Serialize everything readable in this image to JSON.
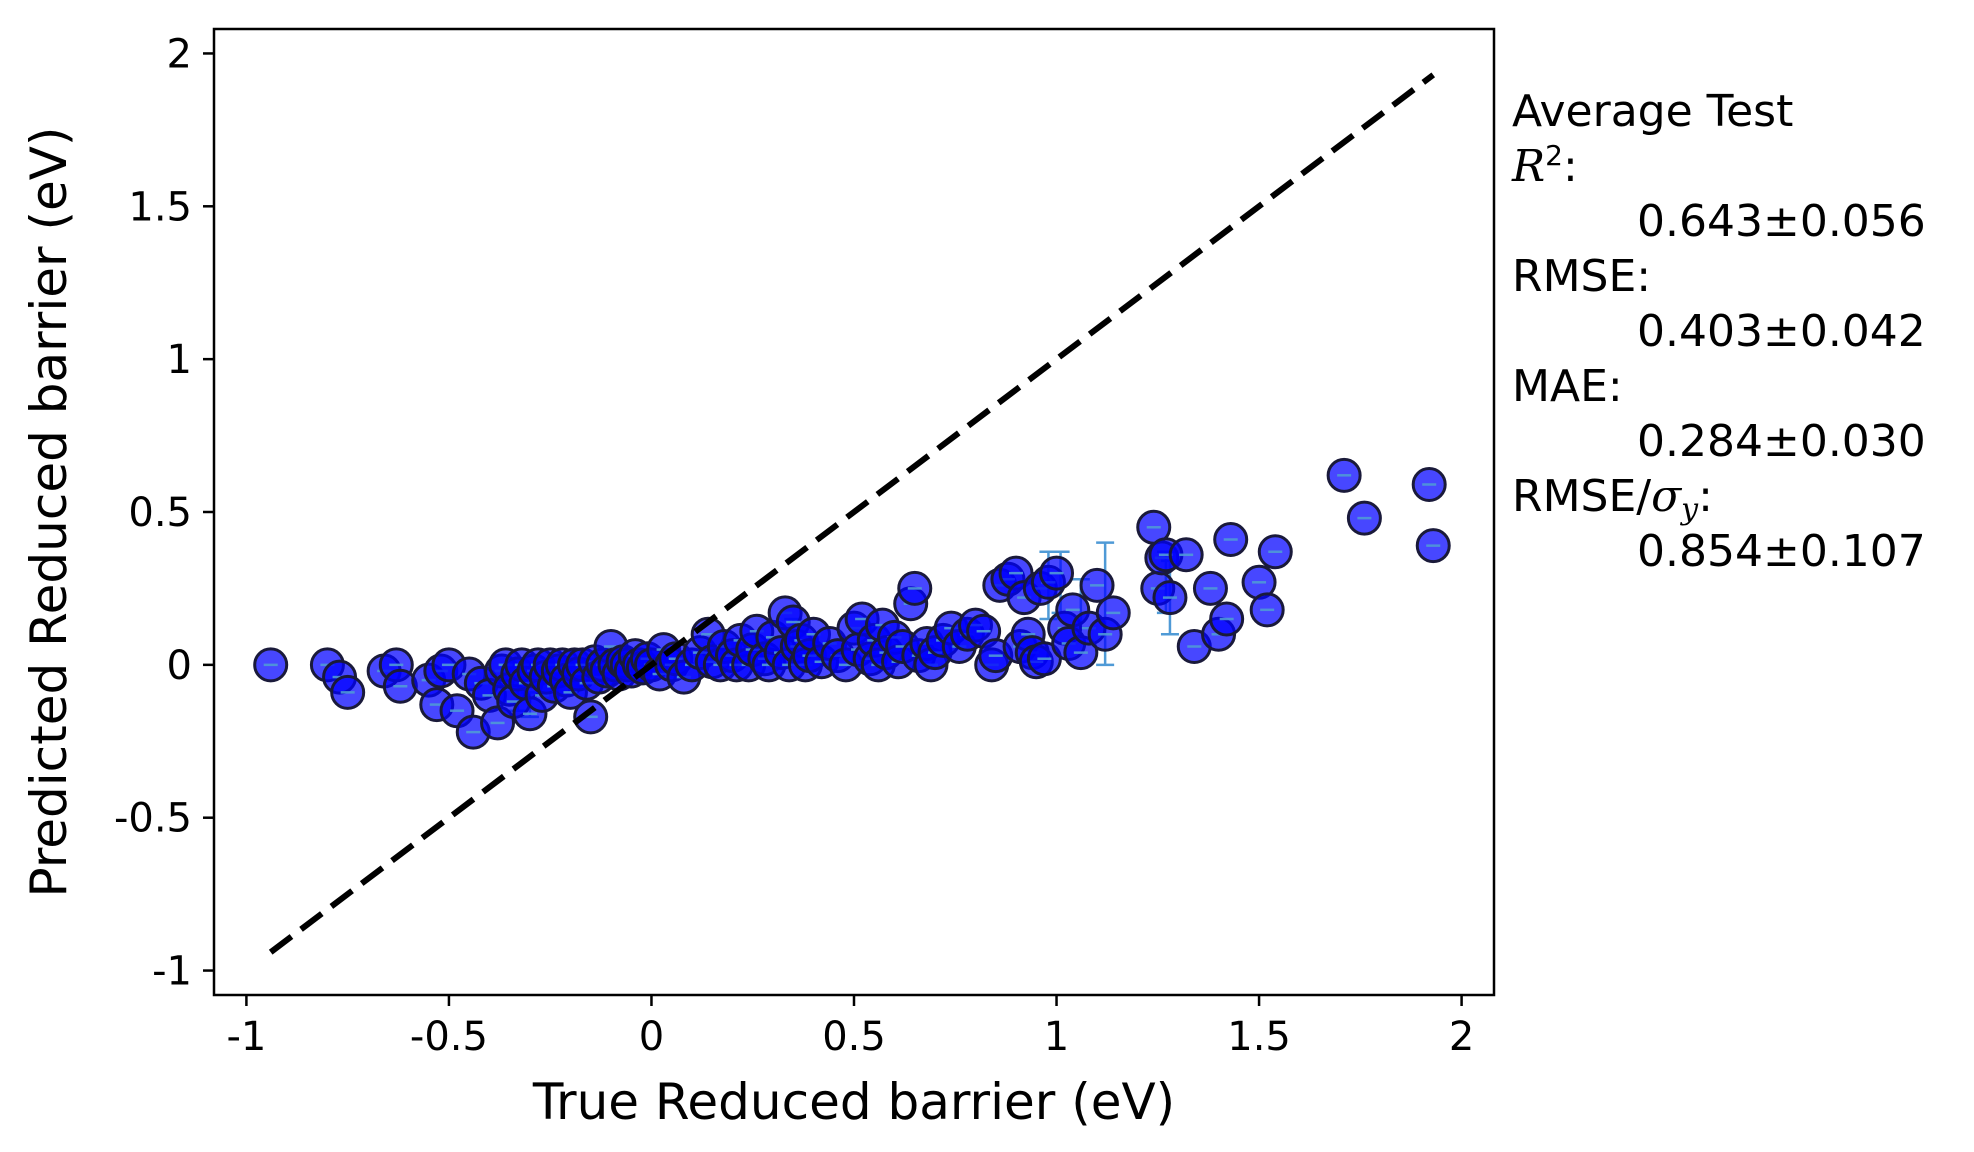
{
  "chart_data": {
    "type": "scatter",
    "xlabel": "True Reduced barrier (eV)",
    "ylabel": "Predicted Reduced barrier (eV)",
    "xlim": [
      -1.08,
      2.08
    ],
    "ylim": [
      -1.08,
      2.08
    ],
    "xticks": [
      -1,
      -0.5,
      0,
      0.5,
      1,
      1.5,
      2
    ],
    "yticks": [
      -1,
      -0.5,
      0,
      0.5,
      1,
      1.5,
      2
    ],
    "xtick_labels": [
      "-1",
      "-0.5",
      "0",
      "0.5",
      "1",
      "1.5",
      "2"
    ],
    "ytick_labels": [
      "-1",
      "-0.5",
      "0",
      "0.5",
      "1",
      "1.5",
      "2"
    ],
    "grid": false,
    "point_color": "#0000ff",
    "errorbar_color": "#4f9ad6",
    "identity_line": {
      "x": [
        -0.94,
        1.93
      ],
      "y": [
        -0.94,
        1.93
      ],
      "style": "dashed",
      "color": "#000000"
    },
    "points": [
      [
        -0.94,
        0.0
      ],
      [
        -0.8,
        0.0
      ],
      [
        -0.77,
        -0.04
      ],
      [
        -0.75,
        -0.09
      ],
      [
        -0.66,
        -0.02
      ],
      [
        -0.63,
        0.0
      ],
      [
        -0.62,
        -0.07
      ],
      [
        -0.55,
        -0.05
      ],
      [
        -0.53,
        -0.13
      ],
      [
        -0.52,
        -0.02
      ],
      [
        -0.5,
        0.0
      ],
      [
        -0.48,
        -0.15
      ],
      [
        -0.45,
        -0.03
      ],
      [
        -0.44,
        -0.22
      ],
      [
        -0.42,
        -0.06
      ],
      [
        -0.4,
        -0.1
      ],
      [
        -0.38,
        -0.19
      ],
      [
        -0.37,
        -0.02
      ],
      [
        -0.36,
        0.0
      ],
      [
        -0.35,
        -0.08
      ],
      [
        -0.34,
        -0.12
      ],
      [
        -0.33,
        -0.03
      ],
      [
        -0.32,
        0.0
      ],
      [
        -0.31,
        -0.06
      ],
      [
        -0.3,
        -0.16
      ],
      [
        -0.29,
        -0.02
      ],
      [
        -0.28,
        0.0
      ],
      [
        -0.27,
        -0.1
      ],
      [
        -0.26,
        -0.04
      ],
      [
        -0.25,
        0.0
      ],
      [
        -0.24,
        -0.07
      ],
      [
        -0.23,
        -0.02
      ],
      [
        -0.22,
        0.0
      ],
      [
        -0.21,
        -0.05
      ],
      [
        -0.2,
        -0.09
      ],
      [
        -0.19,
        0.0
      ],
      [
        -0.18,
        -0.03
      ],
      [
        -0.17,
        0.0
      ],
      [
        -0.16,
        -0.06
      ],
      [
        -0.15,
        -0.17
      ],
      [
        -0.14,
        0.01
      ],
      [
        -0.13,
        -0.04
      ],
      [
        -0.12,
        0.0
      ],
      [
        -0.11,
        -0.02
      ],
      [
        -0.1,
        0.06
      ],
      [
        -0.09,
        0.0
      ],
      [
        -0.08,
        -0.03
      ],
      [
        -0.07,
        0.01
      ],
      [
        -0.06,
        0.0
      ],
      [
        -0.05,
        -0.02
      ],
      [
        -0.04,
        0.03
      ],
      [
        -0.03,
        0.0
      ],
      [
        -0.02,
        -0.01
      ],
      [
        -0.01,
        0.02
      ],
      [
        0.0,
        0.0
      ],
      [
        0.02,
        -0.03
      ],
      [
        0.03,
        0.05
      ],
      [
        0.05,
        0.0
      ],
      [
        0.06,
        0.02
      ],
      [
        0.08,
        -0.04
      ],
      [
        0.1,
        0.0
      ],
      [
        0.12,
        0.04
      ],
      [
        0.14,
        0.1
      ],
      [
        0.15,
        0.01
      ],
      [
        0.17,
        0.0
      ],
      [
        0.18,
        0.06
      ],
      [
        0.2,
        0.03
      ],
      [
        0.21,
        0.0
      ],
      [
        0.22,
        0.08
      ],
      [
        0.24,
        0.0
      ],
      [
        0.25,
        0.05
      ],
      [
        0.26,
        0.11
      ],
      [
        0.28,
        0.02
      ],
      [
        0.29,
        0.0
      ],
      [
        0.3,
        0.09
      ],
      [
        0.32,
        0.04
      ],
      [
        0.33,
        0.17
      ],
      [
        0.34,
        0.0
      ],
      [
        0.35,
        0.14
      ],
      [
        0.36,
        0.06
      ],
      [
        0.37,
        0.08
      ],
      [
        0.38,
        0.0
      ],
      [
        0.39,
        0.03
      ],
      [
        0.4,
        0.1
      ],
      [
        0.42,
        0.01
      ],
      [
        0.44,
        0.07
      ],
      [
        0.46,
        0.03
      ],
      [
        0.48,
        0.0
      ],
      [
        0.5,
        0.12
      ],
      [
        0.51,
        0.05
      ],
      [
        0.52,
        0.15
      ],
      [
        0.54,
        0.02
      ],
      [
        0.55,
        0.08
      ],
      [
        0.56,
        0.0
      ],
      [
        0.57,
        0.13
      ],
      [
        0.58,
        0.04
      ],
      [
        0.6,
        0.09
      ],
      [
        0.61,
        0.01
      ],
      [
        0.62,
        0.06
      ],
      [
        0.64,
        0.2
      ],
      [
        0.65,
        0.25
      ],
      [
        0.66,
        0.03
      ],
      [
        0.68,
        0.07
      ],
      [
        0.69,
        0.0
      ],
      [
        0.7,
        0.04
      ],
      [
        0.72,
        0.08
      ],
      [
        0.74,
        0.12
      ],
      [
        0.76,
        0.06
      ],
      [
        0.78,
        0.1
      ],
      [
        0.8,
        0.13
      ],
      [
        0.82,
        0.11
      ],
      [
        0.84,
        0.0
      ],
      [
        0.85,
        0.03
      ],
      [
        0.86,
        0.26
      ],
      [
        0.88,
        0.28
      ],
      [
        0.9,
        0.3
      ],
      [
        0.91,
        0.06
      ],
      [
        0.92,
        0.22
      ],
      [
        0.93,
        0.1
      ],
      [
        0.94,
        0.04
      ],
      [
        0.95,
        0.01
      ],
      [
        0.96,
        0.25
      ],
      [
        0.97,
        0.02
      ],
      [
        0.98,
        0.27
      ],
      [
        1.0,
        0.3
      ],
      [
        1.02,
        0.12
      ],
      [
        1.03,
        0.07
      ],
      [
        1.04,
        0.18
      ],
      [
        1.06,
        0.04
      ],
      [
        1.08,
        0.12
      ],
      [
        1.1,
        0.26
      ],
      [
        1.12,
        0.1
      ],
      [
        1.14,
        0.17
      ],
      [
        1.24,
        0.45
      ],
      [
        1.25,
        0.25
      ],
      [
        1.26,
        0.35
      ],
      [
        1.27,
        0.36
      ],
      [
        1.28,
        0.22
      ],
      [
        1.32,
        0.36
      ],
      [
        1.34,
        0.06
      ],
      [
        1.38,
        0.25
      ],
      [
        1.4,
        0.1
      ],
      [
        1.42,
        0.15
      ],
      [
        1.43,
        0.41
      ],
      [
        1.5,
        0.27
      ],
      [
        1.52,
        0.18
      ],
      [
        1.54,
        0.37
      ],
      [
        1.71,
        0.62
      ],
      [
        1.76,
        0.48
      ],
      [
        1.92,
        0.59
      ],
      [
        1.93,
        0.39
      ]
    ],
    "error_bars": [
      [
        0.35,
        0.1,
        0.05
      ],
      [
        0.98,
        0.26,
        0.11
      ],
      [
        1.01,
        0.27,
        0.1
      ],
      [
        1.06,
        0.2,
        0.08
      ],
      [
        1.12,
        0.2,
        0.2
      ],
      [
        1.27,
        0.27,
        0.1
      ],
      [
        1.28,
        0.22,
        0.12
      ],
      [
        -0.33,
        -0.1,
        0.05
      ],
      [
        -0.3,
        -0.13,
        0.04
      ]
    ]
  },
  "stats": {
    "title": "Average Test",
    "r2_label": "R",
    "r2_sup": "2",
    "r2_colon": ":",
    "r2_value": "0.643±0.056",
    "rmse_label": "RMSE:",
    "rmse_value": "0.403±0.042",
    "mae_label": "MAE:",
    "mae_value": "0.284±0.030",
    "rmse_sigma_prefix": "RMSE/",
    "rmse_sigma_symbol": "σ",
    "rmse_sigma_sub": "y",
    "rmse_sigma_colon": ":",
    "rmse_sigma_value": "0.854±0.107"
  }
}
